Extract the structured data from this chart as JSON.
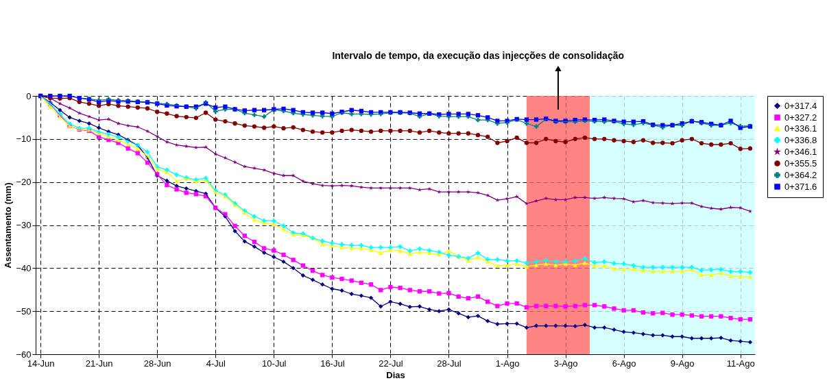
{
  "chart_data": {
    "type": "line",
    "xlabel": "Dias",
    "ylabel": "Assentamento (mm)",
    "categories": [
      "14-Jun",
      null,
      null,
      null,
      null,
      null,
      "21-Jun",
      null,
      null,
      null,
      null,
      null,
      "28-Jun",
      null,
      null,
      null,
      null,
      null,
      "4-Jul",
      null,
      null,
      null,
      null,
      null,
      "10-Jul",
      null,
      null,
      null,
      null,
      null,
      "16-Jul",
      null,
      null,
      null,
      null,
      null,
      "22-Jul",
      null,
      null,
      null,
      null,
      null,
      "28-Jul",
      null,
      null,
      null,
      null,
      null,
      "1-Ago",
      null,
      null,
      null,
      null,
      null,
      "3-Ago",
      null,
      null,
      null,
      null,
      null,
      "6-Ago",
      null,
      null,
      null,
      null,
      null,
      "9-Ago",
      null,
      null,
      null,
      null,
      null,
      "11-Ago",
      null
    ],
    "ylim": [
      -60,
      0
    ],
    "yticks": [
      -60,
      -50,
      -40,
      -30,
      -20,
      -10,
      0
    ],
    "grid": true,
    "legend": "right",
    "line_style": "solid",
    "annotations": [
      "Intervalo de tempo, da execução das injecções de consolidação"
    ],
    "series": [
      {
        "name": "0+317.4",
        "color": "#000080",
        "marker": "diamond",
        "values": [
          0,
          -1.5,
          -3.3,
          -5,
          -5.8,
          -6.4,
          -7.4,
          -8.3,
          -9,
          -10.2,
          -11.5,
          -14.3,
          -18.5,
          -19.7,
          -20.9,
          -21.5,
          -22.1,
          -22.7,
          -26,
          -28,
          -31.4,
          -33.8,
          -35,
          -36.4,
          -37.4,
          -38.5,
          -40,
          -41.7,
          -42.7,
          -43.8,
          -44.8,
          -45.2,
          -46,
          -46.4,
          -46.9,
          -48.9,
          -47.8,
          -48.3,
          -49,
          -48.9,
          -49.6,
          -50,
          -49.6,
          -50.5,
          -51.4,
          -51.1,
          -52.3,
          -53,
          -52.9,
          -52.9,
          -53.8,
          -53.4,
          -53.4,
          -53.4,
          -53.4,
          -53.5,
          -53.2,
          -53.8,
          -53.8,
          -54.3,
          -54.8,
          -55,
          -55.3,
          -55.6,
          -55.6,
          -55.9,
          -55.9,
          -56.3,
          -56.3,
          -56.3,
          -56.2,
          -56.8,
          -57,
          -57.2
        ]
      },
      {
        "name": "0+327.2",
        "color": "#ff00ff",
        "marker": "square",
        "values": [
          0,
          -1.9,
          -4.5,
          -7,
          -7.8,
          -8.1,
          -9.5,
          -10.2,
          -10.9,
          -12.2,
          -13.3,
          -15.5,
          -18.2,
          -20.7,
          -21.7,
          -22.5,
          -22.8,
          -23.3,
          -26,
          -27.5,
          -30.2,
          -32.5,
          -33.9,
          -35.4,
          -35.9,
          -36.9,
          -38.1,
          -39.4,
          -40.6,
          -41.6,
          -42.2,
          -42.5,
          -42.9,
          -43.4,
          -43.8,
          -45.1,
          -44.4,
          -44.6,
          -45.1,
          -45.4,
          -45.4,
          -45.9,
          -45.8,
          -46.6,
          -47,
          -46.6,
          -47.8,
          -48.8,
          -48.2,
          -48.2,
          -49.1,
          -48.8,
          -48.8,
          -48.8,
          -48.9,
          -48.8,
          -48.6,
          -48.6,
          -48.9,
          -49.4,
          -49.8,
          -49.8,
          -50.3,
          -50.5,
          -50.4,
          -50.8,
          -50.8,
          -51,
          -51.2,
          -51.2,
          -51.2,
          -51.6,
          -51.9,
          -51.9
        ]
      },
      {
        "name": "0+336.1",
        "color": "#ffff00",
        "marker": "triangle",
        "values": [
          0,
          -2.5,
          -4.8,
          -7,
          -7.7,
          -8,
          -8.7,
          -9.5,
          -10.3,
          -11.2,
          -12.3,
          -14,
          -17,
          -17.7,
          -19.8,
          -19.2,
          -19.9,
          -19.6,
          -22.4,
          -23.3,
          -25.3,
          -27.1,
          -28.8,
          -29.5,
          -29.8,
          -31,
          -32.2,
          -32.4,
          -33,
          -34.5,
          -34.8,
          -35.2,
          -35.4,
          -35.4,
          -35.8,
          -36.5,
          -35.8,
          -36,
          -36.7,
          -36.3,
          -36.5,
          -36.9,
          -36,
          -37.3,
          -38.3,
          -37.5,
          -38.5,
          -39.5,
          -39.3,
          -39,
          -39.7,
          -39.3,
          -39,
          -39.3,
          -39,
          -39.3,
          -38.8,
          -39.5,
          -39.5,
          -40.2,
          -40.4,
          -40.3,
          -40.6,
          -40.8,
          -40.8,
          -40.8,
          -40.8,
          -40.4,
          -41.6,
          -41.6,
          -41.2,
          -41.8,
          -42,
          -42
        ]
      },
      {
        "name": "0+336.8",
        "color": "#00ffff",
        "marker": "cross",
        "values": [
          0,
          -1.8,
          -4.3,
          -6.5,
          -7.5,
          -7.5,
          -8.4,
          -8.9,
          -9.6,
          -10.5,
          -11.5,
          -13,
          -16.5,
          -17.2,
          -18.3,
          -19,
          -19.5,
          -19.1,
          -22,
          -23,
          -25,
          -26.7,
          -28,
          -29,
          -29,
          -30.2,
          -31.8,
          -32,
          -33,
          -33.7,
          -34.2,
          -34.5,
          -34.7,
          -34.7,
          -35.2,
          -35.2,
          -35.2,
          -35,
          -36,
          -35.5,
          -35.9,
          -36.3,
          -37,
          -37.3,
          -37.7,
          -36.5,
          -38,
          -38,
          -38.3,
          -38.3,
          -38.8,
          -38.5,
          -38.2,
          -38.5,
          -38.5,
          -38.3,
          -37.8,
          -38.7,
          -38.5,
          -38.9,
          -39,
          -39.4,
          -39.8,
          -39.8,
          -39.8,
          -39.8,
          -39.8,
          -39.8,
          -40.5,
          -40.4,
          -40.3,
          -40.8,
          -40.8,
          -41
        ]
      },
      {
        "name": "0+346.1",
        "color": "#800080",
        "marker": "star",
        "values": [
          0,
          -0.5,
          -1.8,
          -2.8,
          -4,
          -4.8,
          -5.6,
          -5.4,
          -6.4,
          -6.9,
          -7.2,
          -8.2,
          -9.4,
          -10.7,
          -11.4,
          -11.7,
          -12,
          -11.9,
          -13.5,
          -14.4,
          -15.4,
          -16.4,
          -16.8,
          -17.2,
          -18,
          -18.5,
          -18.5,
          -19.8,
          -20.4,
          -20.8,
          -20.9,
          -20.8,
          -20.9,
          -21.2,
          -21.4,
          -21.4,
          -21.4,
          -21.4,
          -21.4,
          -21.8,
          -21.6,
          -22.3,
          -22.3,
          -22.3,
          -22.3,
          -22.5,
          -23.1,
          -24.2,
          -23.9,
          -23.4,
          -25,
          -24.4,
          -23.8,
          -24.1,
          -24.1,
          -23.6,
          -23.6,
          -23.8,
          -23.6,
          -23.8,
          -23.9,
          -24.6,
          -24.3,
          -24.8,
          -24.9,
          -25,
          -24.9,
          -24.9,
          -25.7,
          -26.1,
          -26.3,
          -25.9,
          -26,
          -26.8
        ]
      },
      {
        "name": "0+355.5",
        "color": "#800000",
        "marker": "circle",
        "values": [
          0,
          -0.5,
          -0.6,
          -0.5,
          -1.4,
          -1.8,
          -2.3,
          -1.9,
          -2.3,
          -2.5,
          -2.7,
          -2.9,
          -3.7,
          -4.1,
          -4.7,
          -4.9,
          -5.1,
          -3.9,
          -5.5,
          -5.9,
          -6.4,
          -6.9,
          -7.1,
          -7.4,
          -7.1,
          -7.5,
          -7.3,
          -7.9,
          -8.3,
          -8.5,
          -8.5,
          -8.1,
          -7.9,
          -8.1,
          -8.3,
          -8.1,
          -8.1,
          -8.1,
          -8.1,
          -8.5,
          -8.1,
          -8.5,
          -8.7,
          -8.7,
          -8.7,
          -9.1,
          -9.5,
          -10.9,
          -10.5,
          -9.7,
          -10.9,
          -10.9,
          -10,
          -10.5,
          -10.7,
          -10,
          -9.7,
          -10,
          -10,
          -10.3,
          -10.5,
          -10.7,
          -10.3,
          -10.9,
          -10.9,
          -11,
          -10.3,
          -10,
          -11,
          -11.3,
          -11.3,
          -11,
          -12.3,
          -12.2
        ]
      },
      {
        "name": "0+364.2",
        "color": "#008080",
        "marker": "cross",
        "values": [
          null,
          null,
          null,
          null,
          -0.5,
          -0.7,
          -1,
          -0.8,
          -1,
          -1.1,
          -1.3,
          -1.4,
          -1.7,
          -1.9,
          -2.2,
          -2.5,
          -2.9,
          -1.5,
          -3.6,
          -3.1,
          -3.1,
          -4,
          -4.4,
          -4.8,
          -3.2,
          -3.5,
          -4,
          -4.3,
          -4.5,
          -4.7,
          -4.8,
          -3.9,
          -4.2,
          -4.2,
          -4.3,
          -4.2,
          -3.9,
          -3.9,
          -4,
          -4.8,
          -4.1,
          -4.7,
          -4.8,
          -4.8,
          -4.8,
          -5.6,
          -5.6,
          -6.4,
          -6.2,
          -5.5,
          -6.4,
          -7.1,
          -5.4,
          -6,
          -6,
          -6,
          -5.8,
          -5.9,
          -6,
          -5.9,
          -6.5,
          -6.7,
          -6.3,
          -6.8,
          -7.3,
          -6.8,
          -6.8,
          -5.8,
          -6.3,
          -6.8,
          -6.8,
          -6.3,
          -7,
          -7
        ]
      },
      {
        "name": "0+371.6",
        "color": "#0000ff",
        "marker": "square",
        "values": [
          0,
          0,
          0,
          0,
          -0.5,
          -0.8,
          -1.4,
          -1.1,
          -1.3,
          -1.3,
          -1.4,
          -1.5,
          -1.8,
          -2.2,
          -2.4,
          -2.5,
          -2.5,
          -1.8,
          -2.7,
          -2.5,
          -3.1,
          -3.4,
          -3.3,
          -3.3,
          -3.1,
          -3,
          -3.3,
          -3.8,
          -3.9,
          -3.9,
          -4.1,
          -3.7,
          -3.3,
          -3.5,
          -3.8,
          -3.8,
          -3.8,
          -3.8,
          -3.9,
          -4.1,
          -4.1,
          -4.3,
          -4.2,
          -4.2,
          -4.2,
          -4.5,
          -5,
          -5.8,
          -5.8,
          -5.4,
          -5.5,
          -5.5,
          -5.3,
          -5.8,
          -5.8,
          -5.6,
          -5.5,
          -5.6,
          -5.5,
          -5.8,
          -6,
          -6,
          -5.9,
          -6.7,
          -6.8,
          -6.8,
          -6.4,
          -5.9,
          -6.1,
          -6.5,
          -6.8,
          -5.8,
          -7.4,
          -7.1
        ]
      }
    ]
  }
}
